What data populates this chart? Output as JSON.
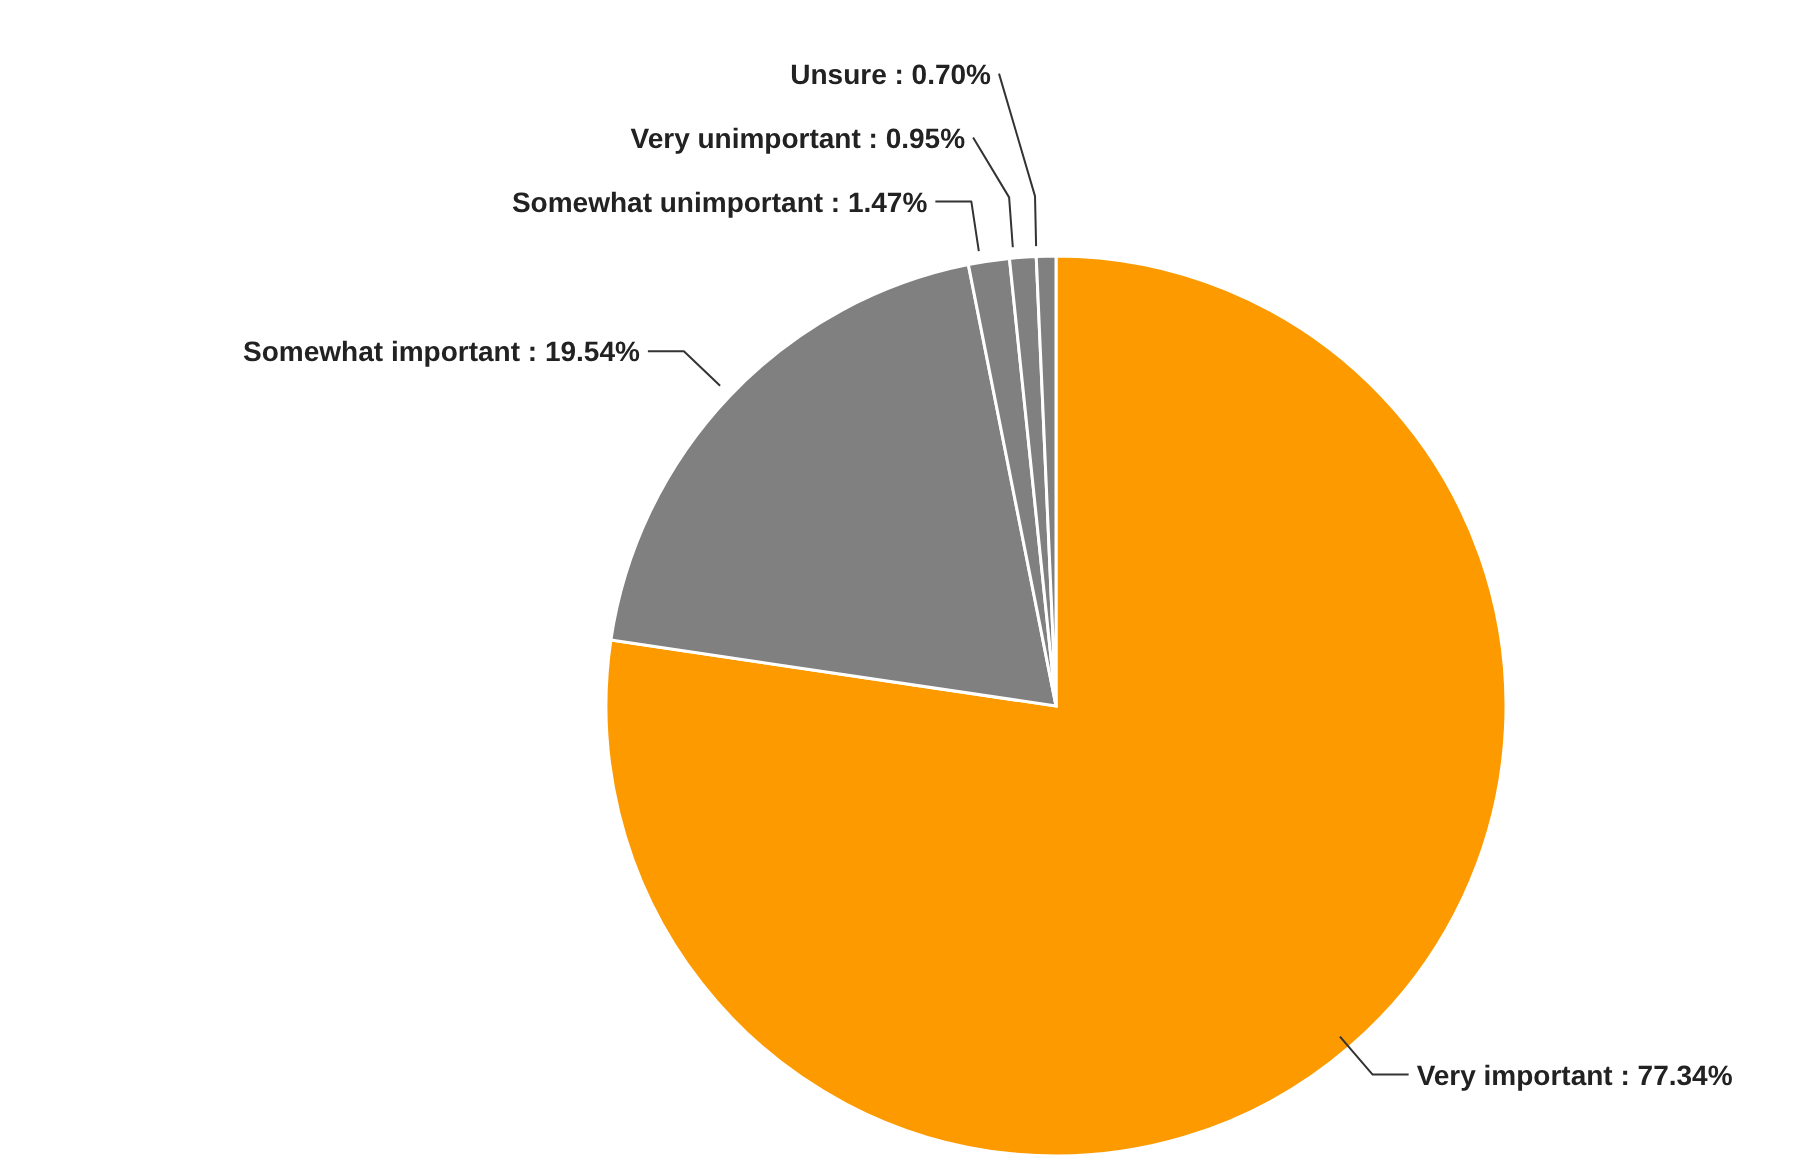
{
  "chart_data": {
    "type": "pie",
    "categories": [
      "Very important",
      "Somewhat important",
      "Somewhat unimportant",
      "Very unimportant",
      "Unsure"
    ],
    "values": [
      77.34,
      19.54,
      1.47,
      0.95,
      0.7
    ],
    "value_labels": [
      "77.34%",
      "19.54%",
      "1.47%",
      "0.95%",
      "0.70%"
    ],
    "colors": [
      "#fd9a00",
      "#808080",
      "#808080",
      "#808080",
      "#808080"
    ],
    "legend": false
  }
}
